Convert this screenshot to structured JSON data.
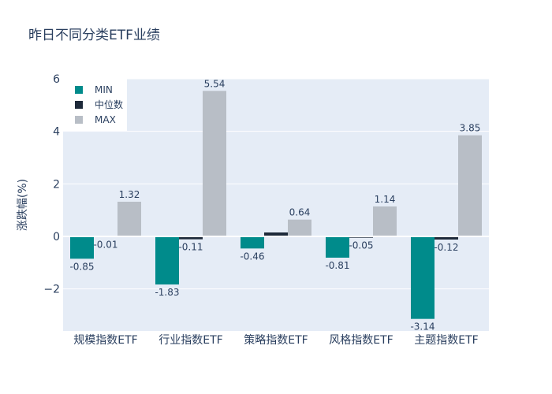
{
  "chart_data": {
    "type": "bar",
    "title": "昨日不同分类ETF业绩",
    "xlabel": "",
    "ylabel": "涨跌幅(%)",
    "categories": [
      "规模指数ETF",
      "行业指数ETF",
      "策略指数ETF",
      "风格指数ETF",
      "主题指数ETF"
    ],
    "series": [
      {
        "name": "MIN",
        "color": "#008b8b",
        "values": [
          -0.85,
          -1.83,
          -0.46,
          -0.81,
          -3.14
        ]
      },
      {
        "name": "中位数",
        "color": "#1e2a3a",
        "values": [
          -0.01,
          -0.11,
          0.15,
          -0.05,
          -0.12
        ]
      },
      {
        "name": "MAX",
        "color": "#b8bec6",
        "values": [
          1.32,
          5.54,
          0.64,
          1.14,
          3.85
        ]
      }
    ],
    "data_labels": [
      [
        "-0.85",
        "-0.01",
        "1.32"
      ],
      [
        "-1.83",
        "-0.11",
        "5.54"
      ],
      [
        "-0.46",
        "",
        "0.64"
      ],
      [
        "-0.81",
        "-0.05",
        "1.14"
      ],
      [
        "-3.14",
        "-0.12",
        "3.85"
      ]
    ],
    "yticks": [
      -2,
      0,
      2,
      4,
      6
    ],
    "ytick_labels": [
      "−2",
      "0",
      "2",
      "4",
      "6"
    ],
    "ylim": [
      -3.6,
      6.0
    ],
    "grid": true,
    "legend": "top-left",
    "plot_bg": "#e5ecf6"
  }
}
